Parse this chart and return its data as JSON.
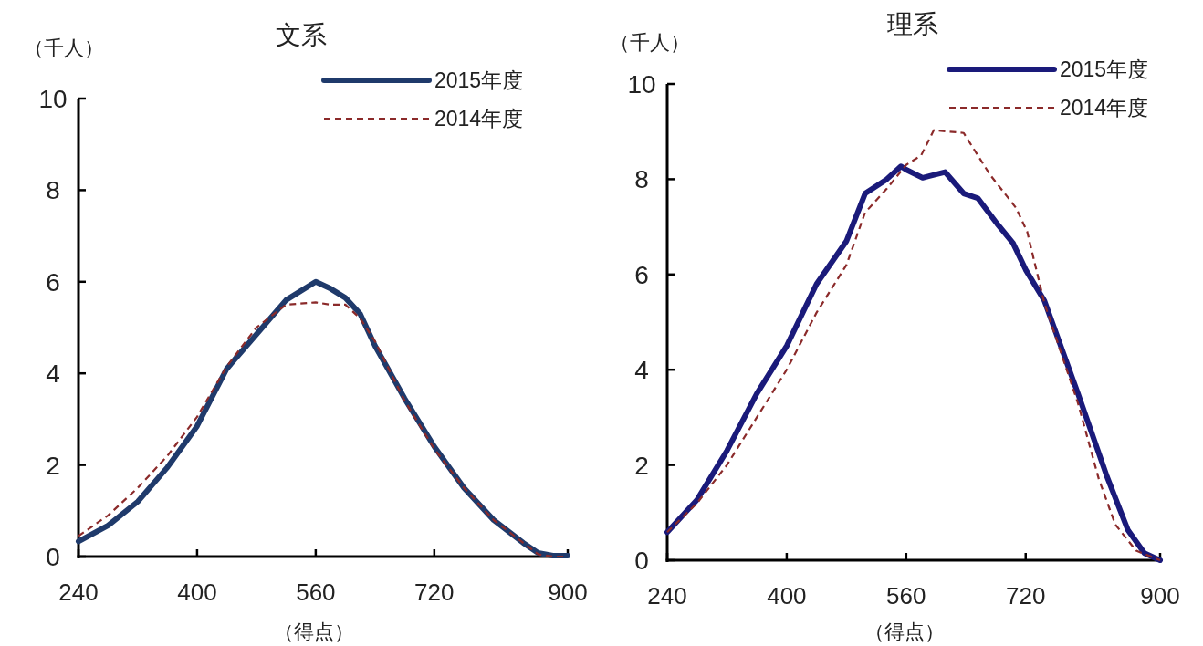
{
  "chart_data": [
    {
      "type": "line",
      "title": "文系",
      "ylabel": "（千人）",
      "xlabel": "（得点）",
      "xlim": [
        240,
        900
      ],
      "ylim": [
        0,
        10
      ],
      "xticks": [
        240,
        400,
        560,
        720,
        900
      ],
      "yticks": [
        0,
        2,
        4,
        6,
        8,
        10
      ],
      "legend": "top right",
      "grid": false,
      "x": [
        240,
        280,
        320,
        360,
        400,
        440,
        480,
        520,
        560,
        580,
        600,
        620,
        640,
        680,
        720,
        760,
        800,
        840,
        860,
        880,
        900
      ],
      "series": [
        {
          "name": "2015年度",
          "color": "#1f3a6b",
          "line_style": "solid",
          "values": [
            0.33,
            0.68,
            1.2,
            1.95,
            2.85,
            4.1,
            4.85,
            5.6,
            6.0,
            5.85,
            5.65,
            5.3,
            4.6,
            3.45,
            2.4,
            1.5,
            0.8,
            0.3,
            0.08,
            0.02,
            0.02
          ]
        },
        {
          "name": "2014年度",
          "color": "#8b2a2a",
          "line_style": "dashed",
          "values": [
            0.45,
            0.9,
            1.5,
            2.2,
            3.05,
            4.15,
            5.0,
            5.5,
            5.55,
            5.5,
            5.5,
            5.2,
            4.7,
            3.4,
            2.35,
            1.5,
            0.8,
            0.3,
            0.05,
            0.0,
            0.0
          ]
        }
      ]
    },
    {
      "type": "line",
      "title": "理系",
      "ylabel": "（千人）",
      "xlabel": "（得点）",
      "xlim": [
        240,
        900
      ],
      "ylim": [
        0,
        10
      ],
      "xticks": [
        240,
        400,
        560,
        720,
        900
      ],
      "yticks": [
        0,
        2,
        4,
        6,
        8,
        10
      ],
      "legend": "top right",
      "grid": false,
      "series": [
        {
          "name": "2015年度",
          "color": "#1a1a7a",
          "line_style": "solid",
          "x": [
            240,
            280,
            320,
            360,
            400,
            440,
            480,
            505,
            534,
            553,
            560,
            582,
            612,
            637,
            656,
            682,
            703,
            720,
            745,
            790,
            829,
            857,
            879,
            900
          ],
          "values": [
            0.59,
            1.27,
            2.3,
            3.5,
            4.5,
            5.8,
            6.7,
            7.7,
            8.0,
            8.27,
            8.2,
            8.03,
            8.15,
            7.7,
            7.6,
            7.06,
            6.66,
            6.1,
            5.45,
            3.5,
            1.75,
            0.63,
            0.15,
            0.0
          ]
        },
        {
          "name": "2014年度",
          "color": "#8b2a2a",
          "line_style": "dashed",
          "x": [
            240,
            280,
            320,
            360,
            400,
            440,
            480,
            505,
            534,
            560,
            580,
            597,
            637,
            672,
            707,
            722,
            745,
            790,
            818,
            840,
            868,
            900
          ],
          "values": [
            0.59,
            1.2,
            2.0,
            3.0,
            4.0,
            5.2,
            6.2,
            7.3,
            7.8,
            8.3,
            8.5,
            9.03,
            8.97,
            8.1,
            7.4,
            6.9,
            5.4,
            3.3,
            1.7,
            0.75,
            0.2,
            0.0
          ]
        }
      ]
    }
  ]
}
